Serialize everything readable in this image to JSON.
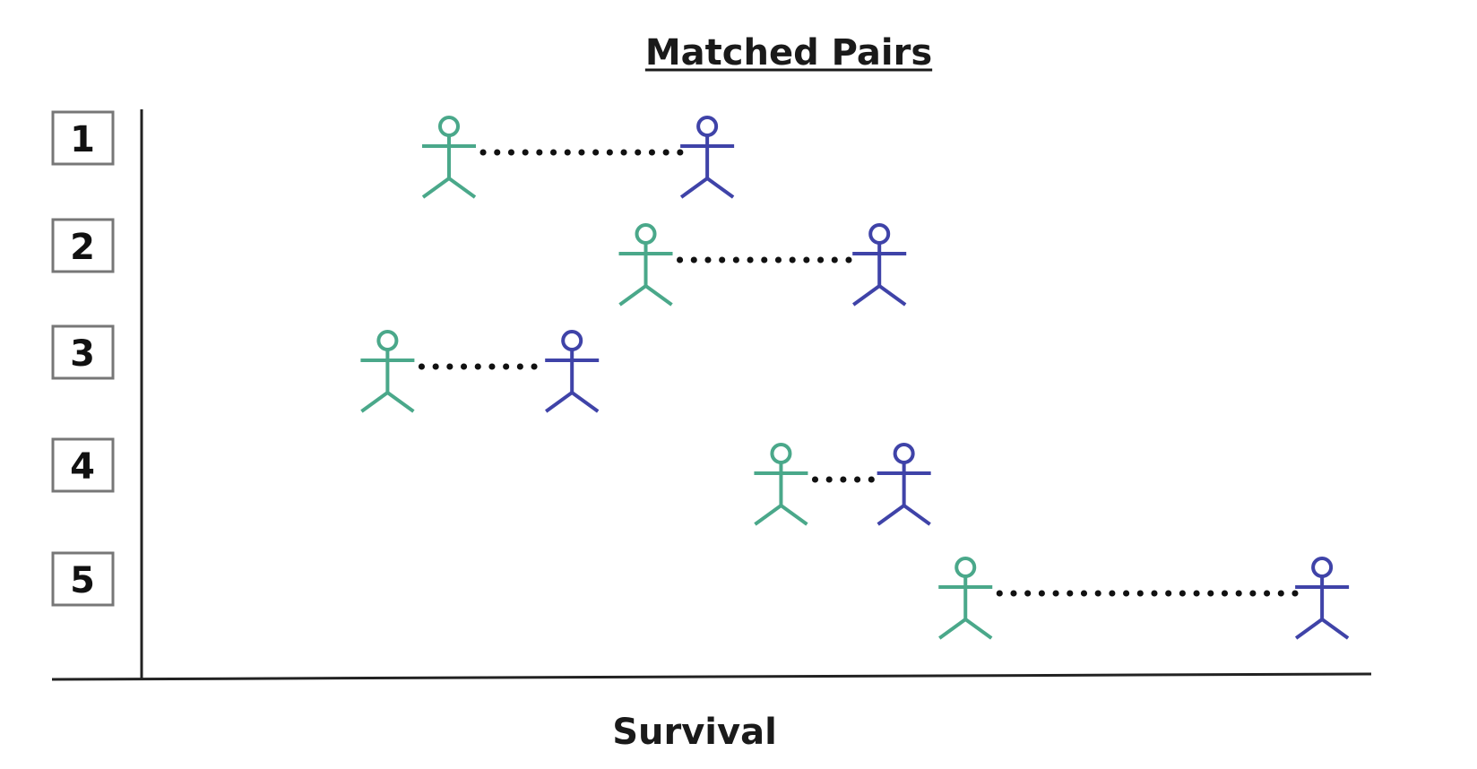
{
  "title": "Matched Pairs",
  "x_axis_label": "Survival",
  "colors": {
    "group_a": "#4aa88a",
    "group_b": "#3f43a8",
    "axis": "#222222",
    "label_box": "#777777",
    "connector": "#111111"
  },
  "pairs": [
    {
      "label": "1",
      "a": 0.25,
      "b": 0.46
    },
    {
      "label": "2",
      "a": 0.41,
      "b": 0.6
    },
    {
      "label": "3",
      "a": 0.2,
      "b": 0.35
    },
    {
      "label": "4",
      "a": 0.52,
      "b": 0.62
    },
    {
      "label": "5",
      "a": 0.67,
      "b": 0.96
    }
  ]
}
